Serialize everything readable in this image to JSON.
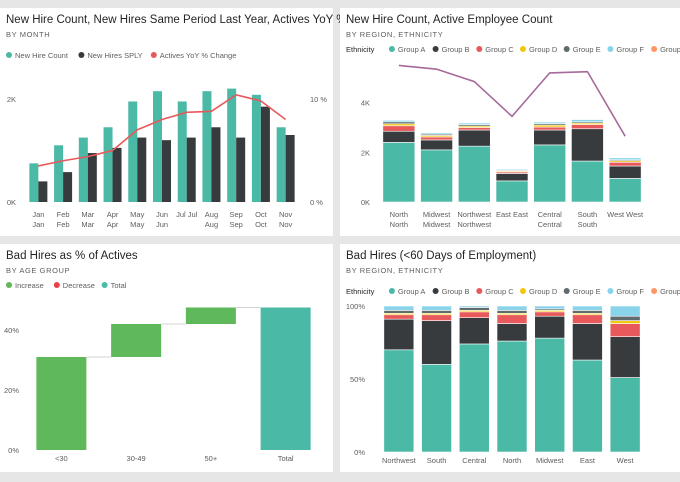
{
  "colors": {
    "teal": "#4ab9a6",
    "dark": "#373b3d",
    "red": "#e8595b",
    "yellow": "#f2c80f",
    "grey": "#5f6b6d",
    "lightblue": "#8ad4eb",
    "orange": "#fe9666",
    "line": "#a66999",
    "green": "#5fb85a",
    "decrease": "#e8414a"
  },
  "panels": {
    "p1": {
      "title": "New Hire Count, New Hires Same Period Last Year, Actives YoY % Ch...",
      "subtitle": "BY MONTH"
    },
    "p2": {
      "title": "New Hire Count, Active Employee Count",
      "subtitle": "BY REGION, ETHNICITY"
    },
    "p3": {
      "title": "Bad Hires as % of Actives",
      "subtitle": "BY AGE GROUP"
    },
    "p4": {
      "title": "Bad Hires (<60 Days of Employment)",
      "subtitle": "BY REGION, ETHNICITY"
    }
  },
  "chart_data": [
    {
      "id": "p1",
      "type": "bar",
      "title": "New Hire Count, New Hires Same Period Last Year, Actives YoY % Ch...",
      "subtitle": "BY MONTH",
      "categories": [
        [
          "Jan",
          "Jan"
        ],
        [
          "Feb",
          "Feb"
        ],
        [
          "Mar",
          "Mar"
        ],
        [
          "Apr",
          "Apr"
        ],
        [
          "May",
          "May"
        ],
        [
          "Jun",
          "Jun"
        ],
        [
          "Jul Jul",
          ""
        ],
        [
          "Aug",
          "Aug"
        ],
        [
          "Sep",
          "Sep"
        ],
        [
          "Oct",
          "Oct"
        ],
        [
          "Nov",
          "Nov"
        ]
      ],
      "series": [
        {
          "name": "New Hire Count",
          "color": "#4ab9a6",
          "values": [
            750,
            1100,
            1250,
            1450,
            1950,
            2150,
            1950,
            2150,
            2200,
            2080,
            1450
          ]
        },
        {
          "name": "New Hires SPLY",
          "color": "#373b3d",
          "values": [
            400,
            580,
            950,
            1050,
            1250,
            1200,
            1250,
            1450,
            1250,
            1850,
            1300
          ]
        },
        {
          "name": "Actives YoY % Change",
          "color": "#e8595b",
          "type": "line",
          "axis": "right",
          "values": [
            3.5,
            4.0,
            4.4,
            5.0,
            7.0,
            8.0,
            8.7,
            8.8,
            10.4,
            9.8,
            8.0
          ]
        }
      ],
      "yticks": [
        "2K",
        "0K"
      ],
      "ylim": [
        0,
        2600
      ],
      "y2ticks": [
        "10 %",
        "0 %"
      ],
      "y2lim": [
        0,
        13
      ]
    },
    {
      "id": "p2",
      "type": "stacked-bar",
      "title": "New Hire Count, Active Employee Count",
      "subtitle": "BY REGION, ETHNICITY",
      "legend_title": "Ethnicity",
      "categories": [
        [
          "North",
          "North"
        ],
        [
          "Midwest",
          "Midwest"
        ],
        [
          "Northwest",
          "Northwest"
        ],
        [
          "East East",
          ""
        ],
        [
          "Central",
          "Central"
        ],
        [
          "South",
          "South"
        ],
        [
          "West West",
          ""
        ]
      ],
      "series": [
        {
          "name": "Group A",
          "color": "#4ab9a6",
          "values": [
            2400,
            2100,
            2250,
            850,
            2300,
            1650,
            950
          ]
        },
        {
          "name": "Group B",
          "color": "#373b3d",
          "values": [
            450,
            400,
            650,
            300,
            600,
            1300,
            500
          ]
        },
        {
          "name": "Group C",
          "color": "#e8595b",
          "values": [
            220,
            120,
            100,
            60,
            120,
            170,
            150
          ]
        },
        {
          "name": "Group D",
          "color": "#f2c80f",
          "values": [
            80,
            60,
            60,
            40,
            80,
            60,
            60
          ]
        },
        {
          "name": "Group E",
          "color": "#5f6b6d",
          "values": [
            80,
            50,
            60,
            30,
            60,
            50,
            40
          ]
        },
        {
          "name": "Group F",
          "color": "#8ad4eb",
          "values": [
            60,
            50,
            60,
            40,
            60,
            90,
            80
          ]
        },
        {
          "name": "Group G",
          "color": "#fe9666",
          "values": [
            0,
            0,
            0,
            0,
            0,
            0,
            0
          ]
        },
        {
          "name": "Active Employee Count",
          "color": "#a66999",
          "type": "line",
          "values": [
            5500,
            5350,
            4850,
            3450,
            5200,
            5250,
            2650
          ]
        }
      ],
      "yticks": [
        "4K",
        "2K",
        "0K"
      ],
      "ylim": [
        0,
        5800
      ]
    },
    {
      "id": "p3",
      "type": "waterfall",
      "title": "Bad Hires as % of Actives",
      "subtitle": "BY AGE GROUP",
      "legend": [
        "Increase",
        "Decrease",
        "Total"
      ],
      "legend_colors": [
        "#5fb85a",
        "#e8414a",
        "#4ab9a6"
      ],
      "categories": [
        "<30",
        "30-49",
        "50+",
        "Total"
      ],
      "steps": [
        31,
        11,
        5.5
      ],
      "total": 47.5,
      "yticks": [
        "40%",
        "20%",
        "0%"
      ],
      "ylim": [
        0,
        52
      ]
    },
    {
      "id": "p4",
      "type": "stacked-bar-100",
      "title": "Bad Hires (<60 Days of Employment)",
      "subtitle": "BY REGION, ETHNICITY",
      "legend_title": "Ethnicity",
      "categories": [
        "Northwest",
        "South",
        "Central",
        "North",
        "Midwest",
        "East",
        "West"
      ],
      "series": [
        {
          "name": "Group A",
          "color": "#4ab9a6",
          "values": [
            70,
            60,
            74,
            76,
            78,
            63,
            51
          ]
        },
        {
          "name": "Group B",
          "color": "#373b3d",
          "values": [
            21,
            30,
            18,
            12,
            15,
            25,
            28
          ]
        },
        {
          "name": "Group C",
          "color": "#e8595b",
          "values": [
            3,
            4,
            4,
            6,
            3,
            6,
            9
          ]
        },
        {
          "name": "Group D",
          "color": "#f2c80f",
          "values": [
            1,
            1,
            1,
            1,
            1,
            1,
            2
          ]
        },
        {
          "name": "Group E",
          "color": "#5f6b6d",
          "values": [
            2,
            2,
            2,
            2,
            1,
            2,
            3
          ]
        },
        {
          "name": "Group F",
          "color": "#8ad4eb",
          "values": [
            3,
            3,
            1,
            3,
            2,
            3,
            7
          ]
        },
        {
          "name": "Group G",
          "color": "#fe9666",
          "values": [
            0,
            0,
            0,
            0,
            0,
            0,
            0
          ]
        }
      ],
      "yticks": [
        "100%",
        "50%",
        "0%"
      ],
      "ylim": [
        0,
        100
      ]
    }
  ]
}
